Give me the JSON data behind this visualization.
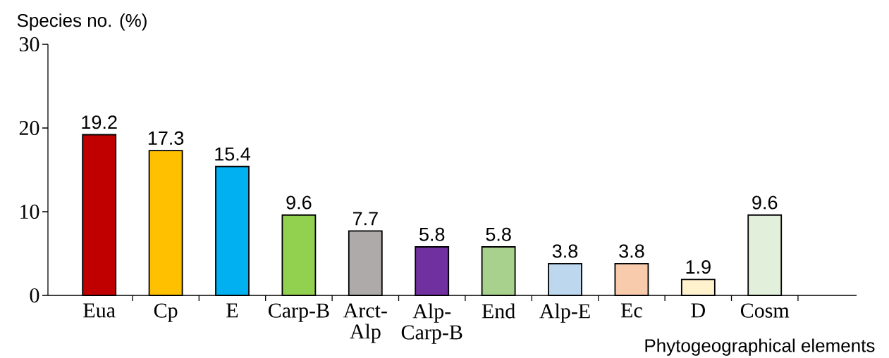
{
  "chart_data": {
    "type": "bar",
    "ylabel": "Species no. (%)",
    "xlabel": "Phytogeographical elements",
    "categories": [
      "Eua",
      "Cp",
      "E",
      "Carp-B",
      "Arct-Alp",
      "Alp-Carp-B",
      "End",
      "Alp-E",
      "Ec",
      "D",
      "Cosm"
    ],
    "values": [
      19.2,
      17.3,
      15.4,
      9.6,
      7.7,
      5.8,
      5.8,
      3.8,
      3.8,
      1.9,
      9.6
    ],
    "colors": [
      "#c00000",
      "#ffc000",
      "#00b0f0",
      "#92d050",
      "#aeaaaa",
      "#7030a0",
      "#a9d18e",
      "#bdd7ee",
      "#f8cbad",
      "#fff2cc",
      "#e2efda"
    ],
    "ylim": [
      0,
      30
    ],
    "yticks": [
      0,
      10,
      20,
      30
    ],
    "data_labels": true
  }
}
